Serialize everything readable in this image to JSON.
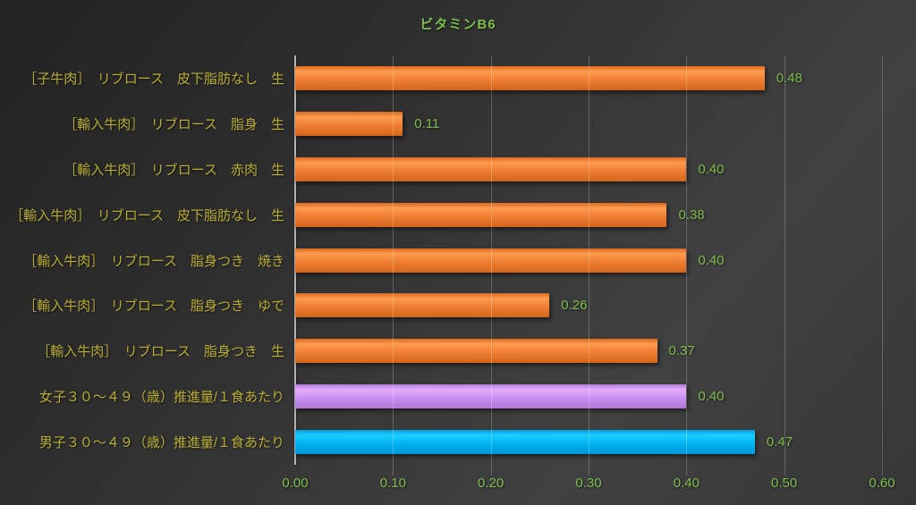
{
  "chart_data": {
    "type": "bar",
    "orientation": "horizontal",
    "title": "ビタミンB6",
    "categories": [
      "［子牛肉］　リブロース　皮下脂肪なし　生",
      "［輸入牛肉］　リブロース　脂身　生",
      "［輸入牛肉］　リブロース　赤肉　生",
      "［輸入牛肉］　リブロース　皮下脂肪なし　生",
      "［輸入牛肉］　リブロース　脂身つき　焼き",
      "［輸入牛肉］　リブロース　脂身つき　ゆで",
      "［輸入牛肉］　リブロース　脂身つき　生",
      "女子３０～４９（歳）推進量/１食あたり",
      "男子３０～４９（歳）推進量/１食あたり"
    ],
    "values": [
      0.48,
      0.11,
      0.4,
      0.38,
      0.4,
      0.26,
      0.37,
      0.4,
      0.47
    ],
    "value_labels": [
      "0.48",
      "0.11",
      "0.40",
      "0.38",
      "0.40",
      "0.26",
      "0.37",
      "0.40",
      "0.47"
    ],
    "bar_colors": [
      "#ed7d31",
      "#ed7d31",
      "#ed7d31",
      "#ed7d31",
      "#ed7d31",
      "#ed7d31",
      "#ed7d31",
      "#c88ff0",
      "#00b0f0"
    ],
    "xlabel": "",
    "ylabel": "",
    "xlim": [
      0,
      0.6
    ],
    "x_ticks": [
      "0.00",
      "0.10",
      "0.20",
      "0.30",
      "0.40",
      "0.50",
      "0.60"
    ],
    "x_tick_values": [
      0,
      0.1,
      0.2,
      0.3,
      0.4,
      0.5,
      0.6
    ],
    "grid": true,
    "legend": false,
    "colors": {
      "title_text": "#7dbd4c",
      "value_label_text": "#7dbd4c",
      "x_tick_text": "#7dbd4c",
      "category_label_text": "#b9ad35",
      "axis_line": "#b3b3b3",
      "gridline": "rgba(255,255,255,0.22)",
      "background_dark": "#232323",
      "background_light": "#414141"
    }
  }
}
